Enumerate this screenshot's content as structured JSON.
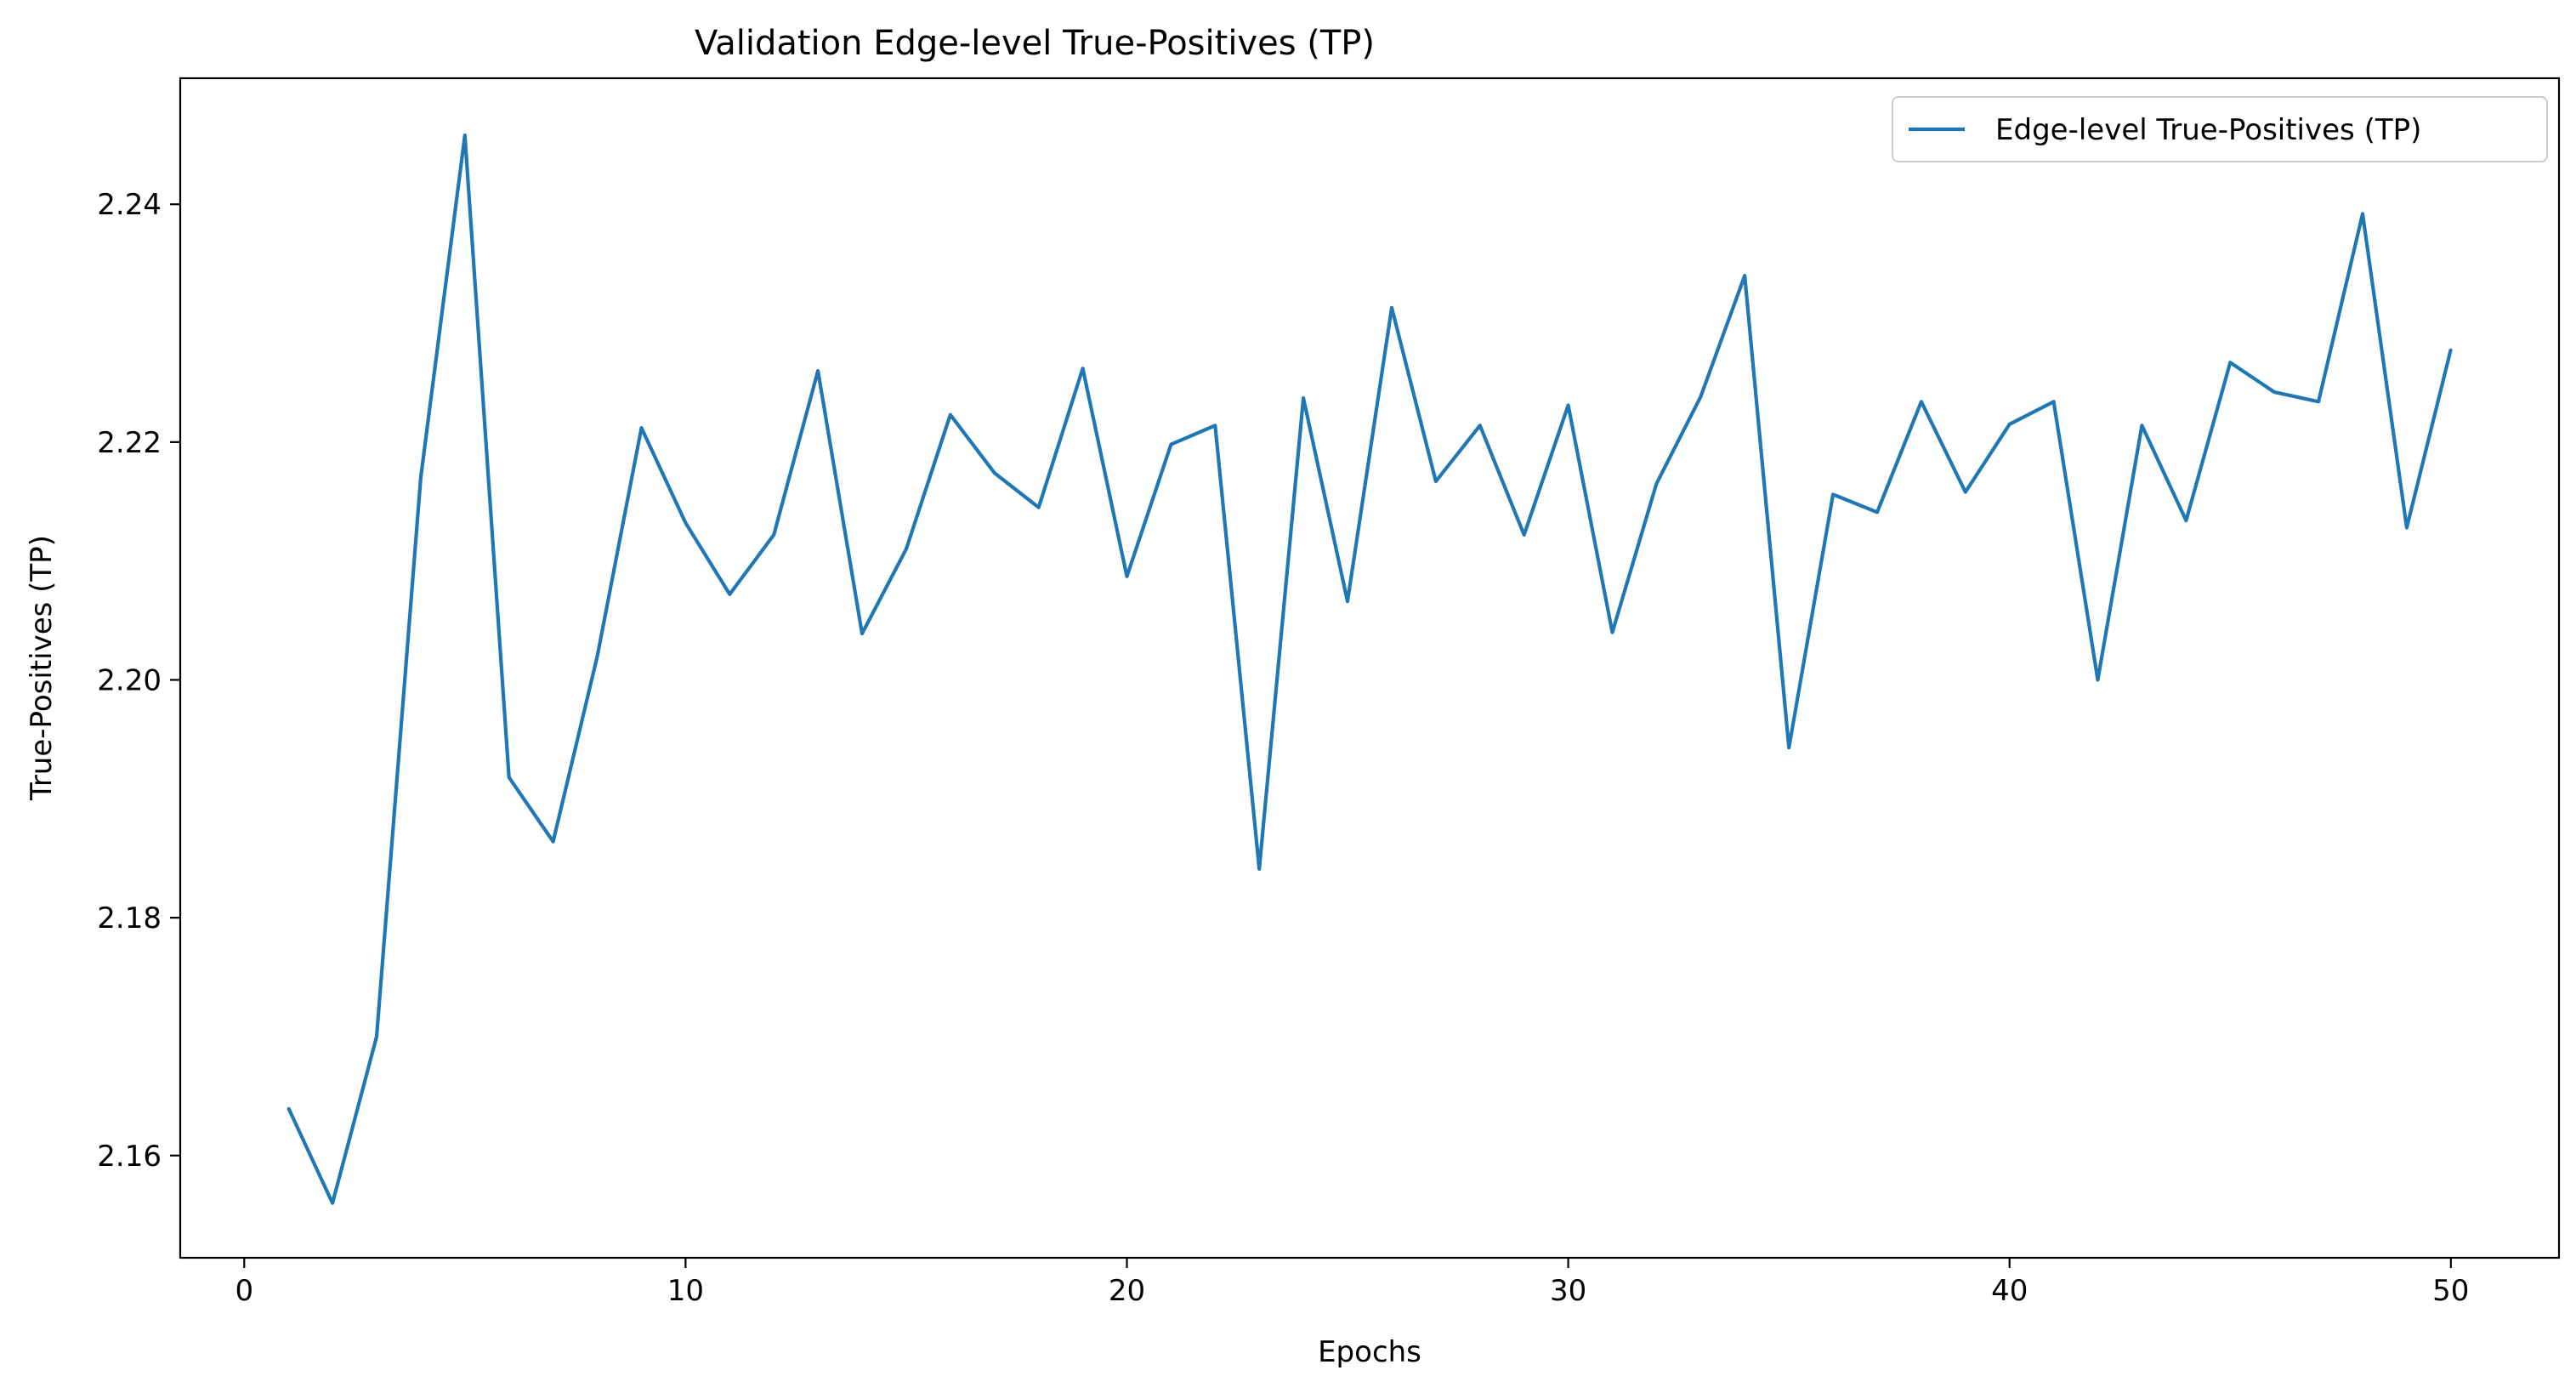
{
  "chart_data": {
    "type": "line",
    "title": "Validation Edge-level True-Positives (TP)",
    "xlabel": "Epochs",
    "ylabel": "True-Positives (TP)",
    "xlim": [
      -1.45,
      52.45
    ],
    "ylim": [
      2.1514,
      2.2506
    ],
    "xticks": [
      0,
      10,
      20,
      30,
      40,
      50
    ],
    "xtick_labels": [
      "0",
      "10",
      "20",
      "30",
      "40",
      "50"
    ],
    "yticks": [
      2.16,
      2.18,
      2.2,
      2.22,
      2.24
    ],
    "ytick_labels": [
      "2.16",
      "2.18",
      "2.20",
      "2.22",
      "2.24"
    ],
    "grid": false,
    "legend_position": "upper-right",
    "series": [
      {
        "name": "Edge-level True-Positives (TP)",
        "color": "#1f77b4",
        "x": [
          1,
          2,
          3,
          4,
          5,
          6,
          7,
          8,
          9,
          10,
          11,
          12,
          13,
          14,
          15,
          16,
          17,
          18,
          19,
          20,
          21,
          22,
          23,
          24,
          25,
          26,
          27,
          28,
          29,
          30,
          31,
          32,
          33,
          34,
          35,
          36,
          37,
          38,
          39,
          40,
          41,
          42,
          43,
          44,
          45,
          46,
          47,
          48,
          49,
          50
        ],
        "y": [
          2.164,
          2.156,
          2.17,
          2.217,
          2.2458,
          2.1918,
          2.1864,
          2.202,
          2.2212,
          2.2132,
          2.2072,
          2.2122,
          2.226,
          2.2039,
          2.211,
          2.2223,
          2.2174,
          2.2145,
          2.2262,
          2.2087,
          2.2198,
          2.2214,
          2.1841,
          2.2237,
          2.2066,
          2.2313,
          2.2167,
          2.2214,
          2.2122,
          2.2231,
          2.204,
          2.2165,
          2.2238,
          2.234,
          2.1943,
          2.2156,
          2.2141,
          2.2234,
          2.2158,
          2.2215,
          2.2234,
          2.2,
          2.2214,
          2.2134,
          2.2267,
          2.2242,
          2.2234,
          2.2392,
          2.2128,
          2.2278
        ]
      }
    ]
  }
}
